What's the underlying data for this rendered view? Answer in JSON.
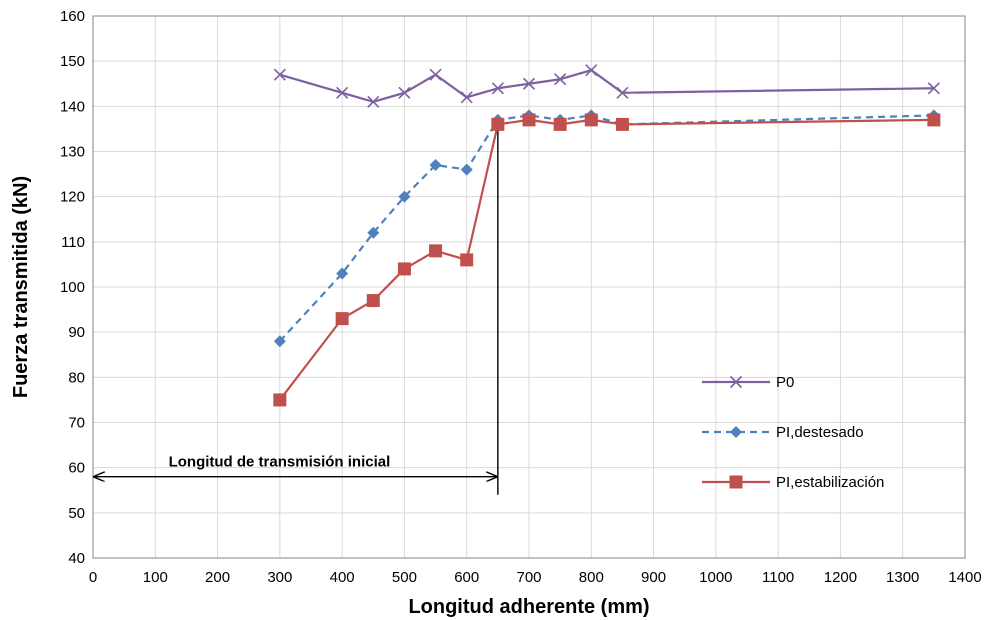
{
  "chart_data": {
    "type": "line",
    "title": "",
    "xlabel": "Longitud adherente (mm)",
    "ylabel": "Fuerza transmitida (kN)",
    "xlim": [
      0,
      1400
    ],
    "ylim": [
      40,
      160
    ],
    "x_ticks": [
      0,
      100,
      200,
      300,
      400,
      500,
      600,
      700,
      800,
      900,
      1000,
      1100,
      1200,
      1300,
      1400
    ],
    "y_ticks": [
      40,
      50,
      60,
      70,
      80,
      90,
      100,
      110,
      120,
      130,
      140,
      150,
      160
    ],
    "grid": true,
    "legend_position": "right",
    "series": [
      {
        "name": "P0",
        "color": "#7d60a0",
        "marker": "x",
        "line_style": "solid",
        "x": [
          300,
          400,
          450,
          500,
          550,
          600,
          650,
          700,
          750,
          800,
          850,
          1350
        ],
        "y": [
          147,
          143,
          141,
          143,
          147,
          142,
          144,
          145,
          146,
          148,
          143,
          144
        ]
      },
      {
        "name": "PI,destesado",
        "color": "#4f81bd",
        "marker": "diamond",
        "line_style": "dashed",
        "x": [
          300,
          400,
          450,
          500,
          550,
          600,
          650,
          700,
          750,
          800,
          850,
          1350
        ],
        "y": [
          88,
          103,
          112,
          120,
          127,
          126,
          137,
          138,
          137,
          138,
          136,
          138
        ]
      },
      {
        "name": "PI,estabilización",
        "color": "#c0504d",
        "marker": "square",
        "line_style": "solid",
        "x": [
          300,
          400,
          450,
          500,
          550,
          600,
          650,
          700,
          750,
          800,
          850,
          1350
        ],
        "y": [
          75,
          93,
          97,
          104,
          108,
          106,
          136,
          137,
          136,
          137,
          136,
          137
        ]
      }
    ],
    "annotations": [
      {
        "text": "Longitud de transmisión inicial",
        "type": "double-arrow",
        "x_start": 0,
        "x_end": 650,
        "y": 58,
        "vertical_line_x": 650,
        "vertical_line_y": [
          54,
          136
        ]
      }
    ]
  }
}
